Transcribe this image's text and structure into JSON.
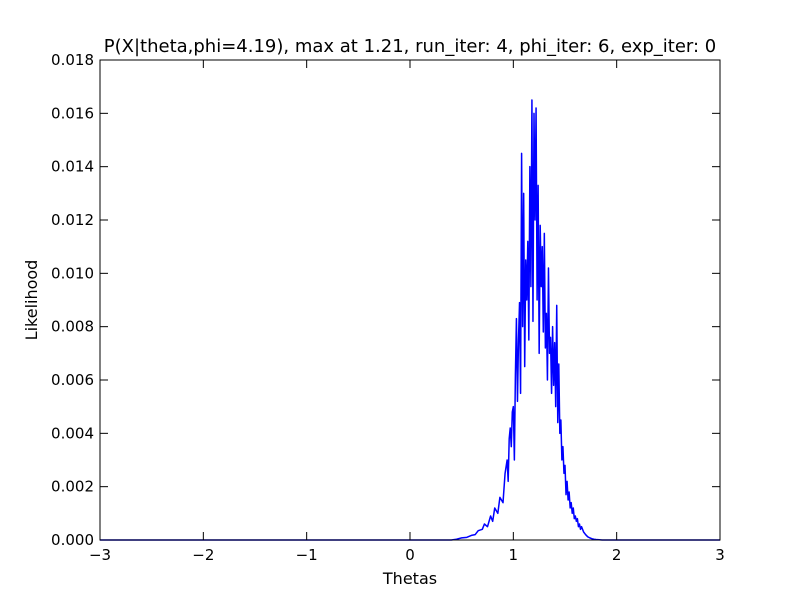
{
  "chart_data": {
    "type": "line",
    "title": "P(X|theta,phi=4.19), max at 1.21, run_iter: 4, phi_iter: 6, exp_iter: 0",
    "xlabel": "Thetas",
    "ylabel": "Likelihood",
    "xlim": [
      -3,
      3
    ],
    "ylim": [
      0,
      0.018
    ],
    "xticks": [
      -3,
      -2,
      -1,
      0,
      1,
      2,
      3
    ],
    "xtick_labels": [
      "−3",
      "−2",
      "−1",
      "0",
      "1",
      "2",
      "3"
    ],
    "yticks": [
      0,
      0.002,
      0.004,
      0.006,
      0.008,
      0.01,
      0.012,
      0.014,
      0.016,
      0.018
    ],
    "ytick_labels": [
      "0.000",
      "0.002",
      "0.004",
      "0.006",
      "0.008",
      "0.010",
      "0.012",
      "0.014",
      "0.016",
      "0.018"
    ],
    "grid": false,
    "line_color": "#0000ff",
    "series": [
      {
        "x": [
          -3.0,
          0.4,
          0.45,
          0.5,
          0.55,
          0.6,
          0.63,
          0.66,
          0.7,
          0.72,
          0.75,
          0.78,
          0.8,
          0.82,
          0.85,
          0.87,
          0.9,
          0.92,
          0.94,
          0.95,
          0.96,
          0.97,
          0.98,
          0.99,
          1.0,
          1.01,
          1.02,
          1.03,
          1.04,
          1.05,
          1.06,
          1.07,
          1.08,
          1.09,
          1.1,
          1.11,
          1.12,
          1.13,
          1.14,
          1.15,
          1.16,
          1.17,
          1.18,
          1.19,
          1.2,
          1.21,
          1.22,
          1.23,
          1.24,
          1.25,
          1.26,
          1.27,
          1.28,
          1.29,
          1.3,
          1.31,
          1.32,
          1.33,
          1.34,
          1.35,
          1.36,
          1.37,
          1.38,
          1.39,
          1.4,
          1.41,
          1.42,
          1.43,
          1.44,
          1.45,
          1.46,
          1.47,
          1.48,
          1.49,
          1.5,
          1.51,
          1.52,
          1.53,
          1.54,
          1.55,
          1.56,
          1.57,
          1.58,
          1.59,
          1.6,
          1.61,
          1.62,
          1.63,
          1.64,
          1.65,
          1.66,
          1.68,
          1.7,
          1.72,
          1.74,
          1.76,
          1.78,
          1.8,
          1.83,
          1.86,
          1.9,
          1.95,
          2.0,
          2.05,
          2.1,
          3.0
        ],
        "y": [
          0.0,
          0.0,
          3e-05,
          8e-05,
          0.0001,
          0.00018,
          0.0002,
          0.00035,
          0.0004,
          0.0006,
          0.0005,
          0.0009,
          0.0007,
          0.0012,
          0.001,
          0.0016,
          0.0014,
          0.0025,
          0.003,
          0.0022,
          0.0038,
          0.0042,
          0.0035,
          0.0048,
          0.005,
          0.003,
          0.0062,
          0.0083,
          0.0052,
          0.0075,
          0.0089,
          0.0055,
          0.0145,
          0.008,
          0.013,
          0.0065,
          0.0105,
          0.009,
          0.0112,
          0.0075,
          0.014,
          0.0095,
          0.0165,
          0.0082,
          0.016,
          0.012,
          0.0162,
          0.009,
          0.0133,
          0.007,
          0.0118,
          0.0095,
          0.011,
          0.0078,
          0.0115,
          0.0072,
          0.0085,
          0.006,
          0.0102,
          0.007,
          0.0076,
          0.0055,
          0.008,
          0.0058,
          0.0074,
          0.005,
          0.0088,
          0.0044,
          0.0066,
          0.004,
          0.0045,
          0.003,
          0.0035,
          0.0025,
          0.0028,
          0.0017,
          0.0022,
          0.0015,
          0.0018,
          0.0012,
          0.0014,
          0.001,
          0.0012,
          0.0008,
          0.0009,
          0.0007,
          0.0008,
          0.0005,
          0.0006,
          0.0004,
          0.0005,
          0.0003,
          0.0002,
          0.00012,
          8e-05,
          5e-05,
          3e-05,
          2e-05,
          1e-05,
          0.0,
          0.0,
          0.0,
          0.0,
          0.0,
          0.0,
          0.0
        ]
      }
    ]
  }
}
